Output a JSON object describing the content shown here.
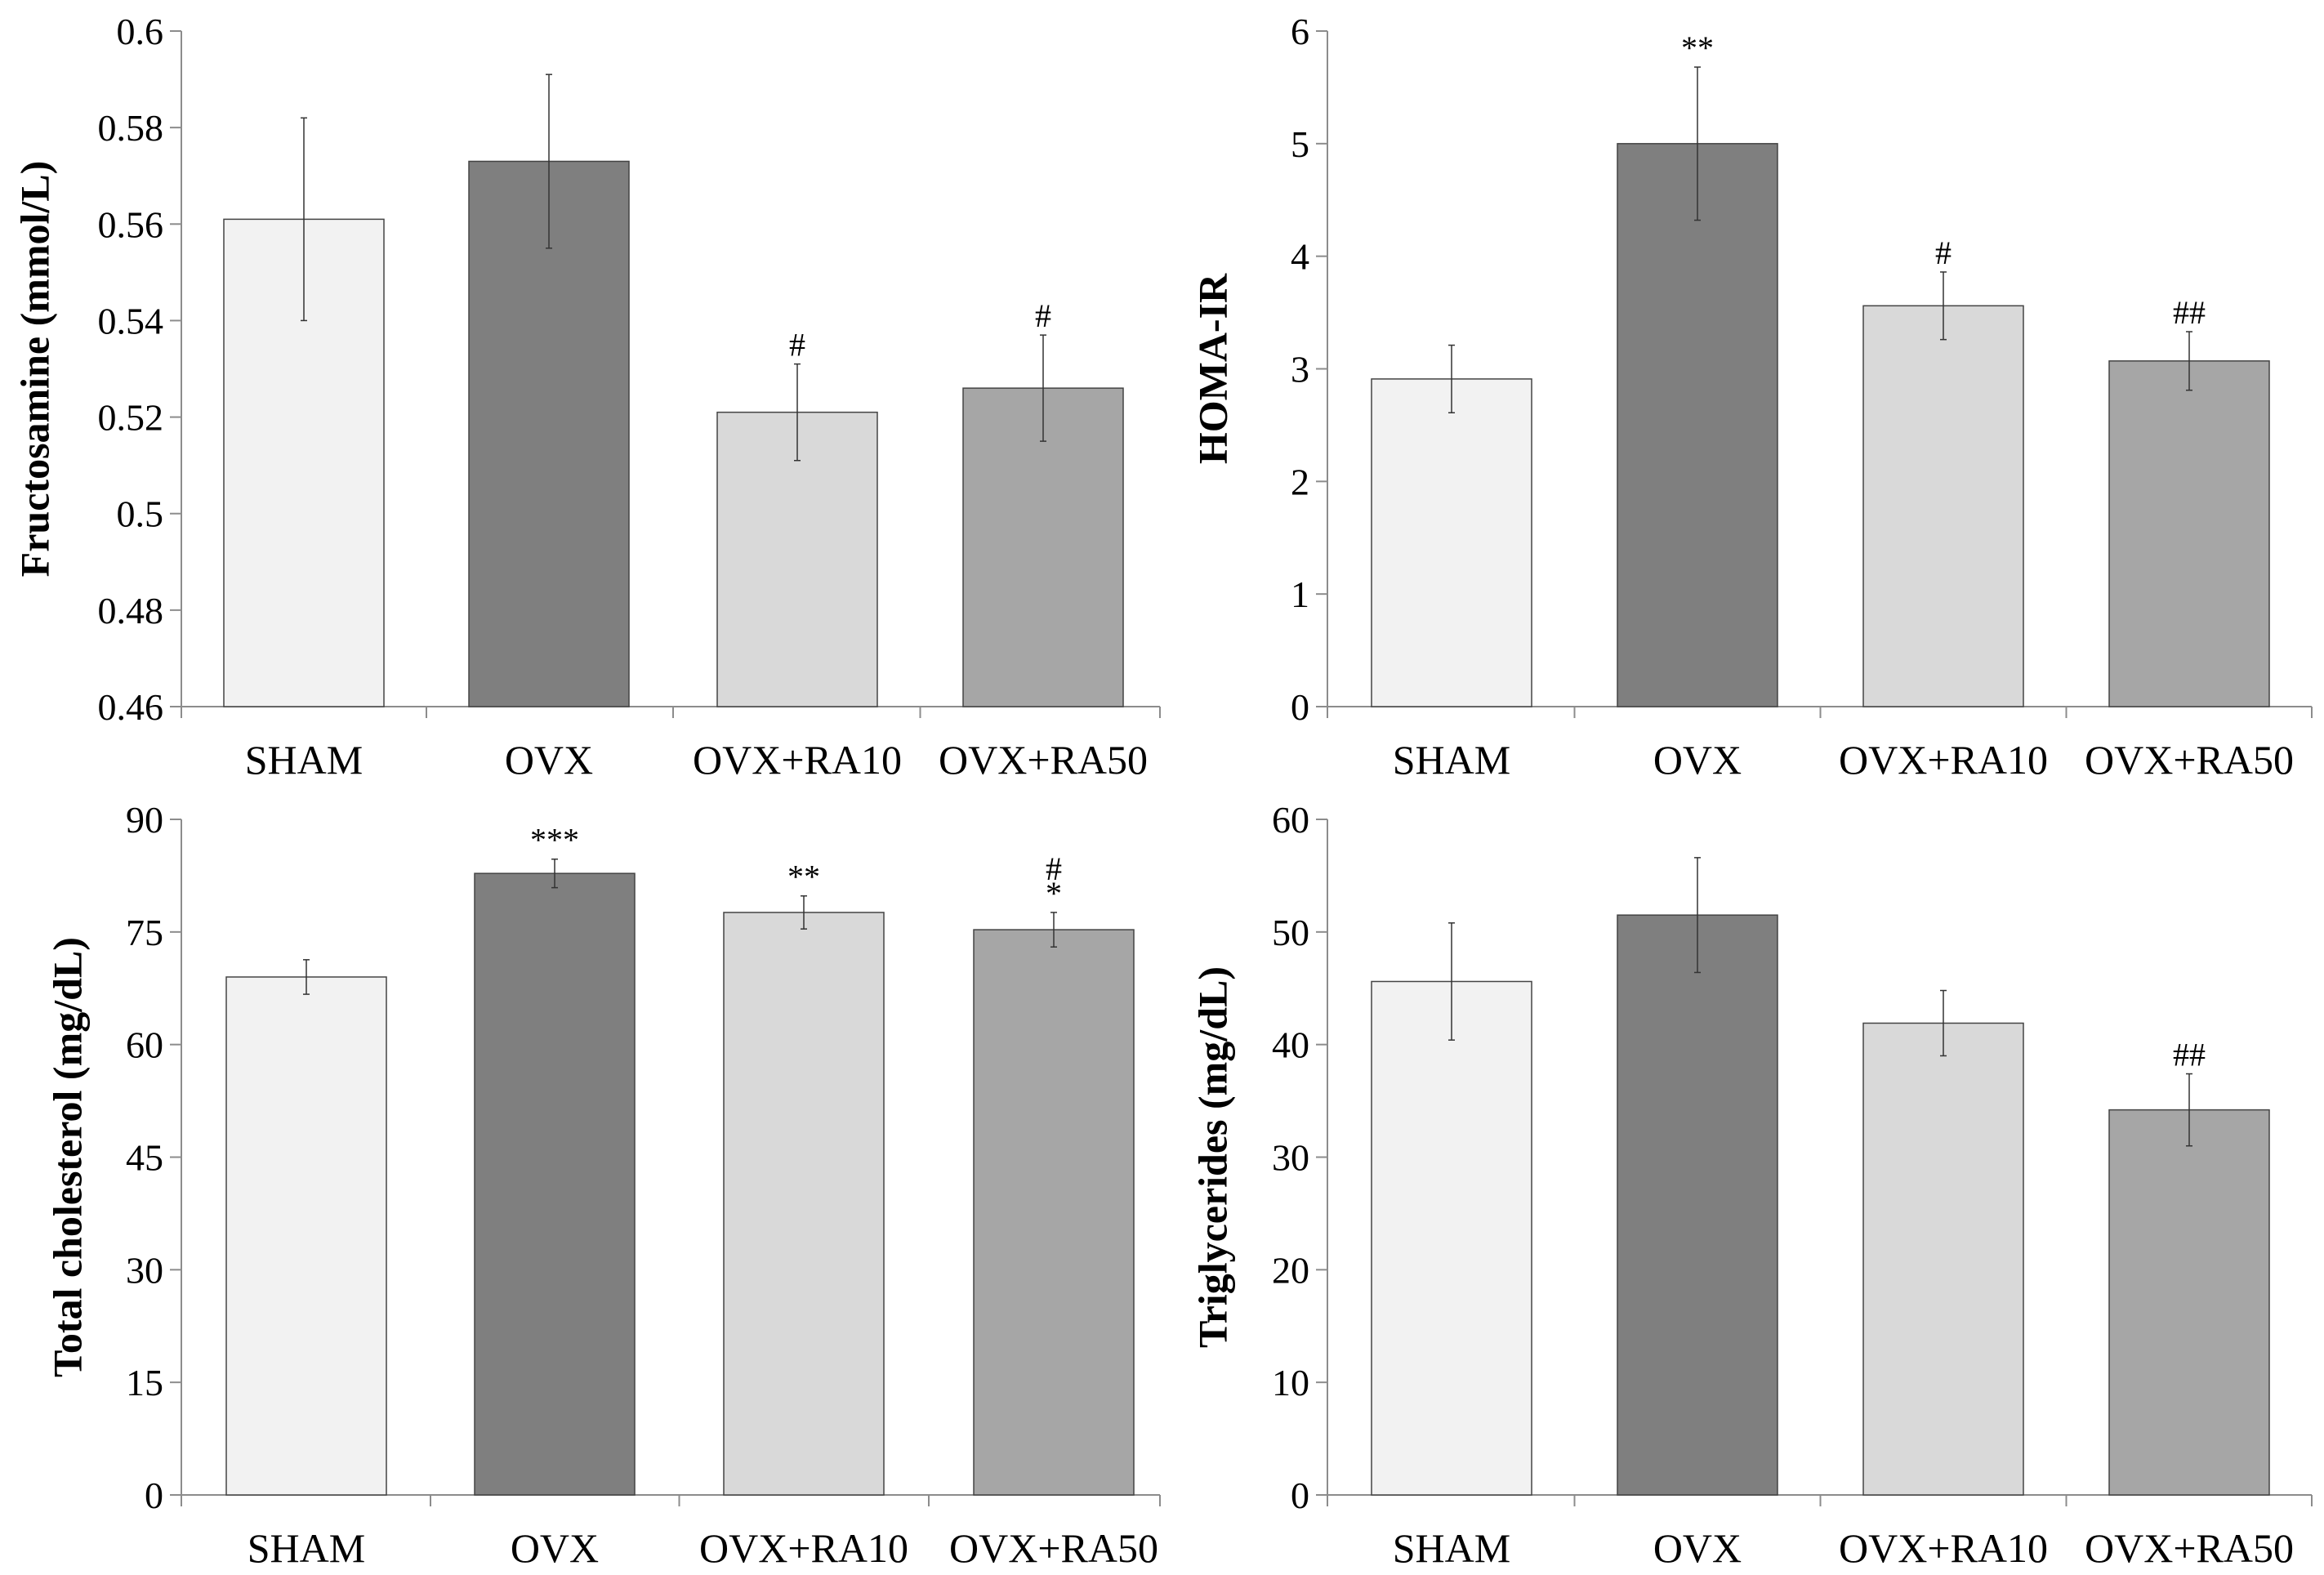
{
  "chart_data": [
    {
      "type": "bar",
      "ylabel": "Fructosamine (mmol/L)",
      "categories": [
        "SHAM",
        "OVX",
        "OVX+RA10",
        "OVX+RA50"
      ],
      "values": [
        0.561,
        0.573,
        0.521,
        0.526
      ],
      "errors": [
        0.021,
        0.018,
        0.01,
        0.011
      ],
      "annotations": [
        "",
        "",
        "#",
        "#"
      ],
      "ylim": [
        0.46,
        0.6
      ],
      "yticks": [
        "0.46",
        "0.48",
        "0.5",
        "0.52",
        "0.54",
        "0.56",
        "0.58",
        "0.6"
      ],
      "colors": [
        "#f2f2f2",
        "#7f7f7f",
        "#d9d9d9",
        "#a6a6a6"
      ],
      "grid": false
    },
    {
      "type": "bar",
      "ylabel": "HOMA-IR",
      "categories": [
        "SHAM",
        "OVX",
        "OVX+RA10",
        "OVX+RA50"
      ],
      "values": [
        2.91,
        5.0,
        3.56,
        3.07
      ],
      "errors": [
        0.3,
        0.68,
        0.3,
        0.26
      ],
      "annotations": [
        "",
        "**",
        "#",
        "##"
      ],
      "ylim": [
        0,
        6
      ],
      "yticks": [
        "0",
        "1",
        "2",
        "3",
        "4",
        "5",
        "6"
      ],
      "colors": [
        "#f2f2f2",
        "#7f7f7f",
        "#d9d9d9",
        "#a6a6a6"
      ],
      "grid": false
    },
    {
      "type": "bar",
      "ylabel": "Total cholesterol (mg/dL)",
      "categories": [
        "SHAM",
        "OVX",
        "OVX+RA10",
        "OVX+RA50"
      ],
      "values": [
        69.0,
        82.8,
        77.6,
        75.3
      ],
      "errors": [
        2.3,
        1.9,
        2.2,
        2.3
      ],
      "annotations": [
        "",
        "***",
        "**",
        "#\n*"
      ],
      "ylim": [
        0,
        90
      ],
      "yticks": [
        "0",
        "15",
        "30",
        "45",
        "60",
        "75",
        "90"
      ],
      "colors": [
        "#f2f2f2",
        "#7f7f7f",
        "#d9d9d9",
        "#a6a6a6"
      ],
      "grid": false
    },
    {
      "type": "bar",
      "ylabel": "Triglycerides (mg/dL)",
      "categories": [
        "SHAM",
        "OVX",
        "OVX+RA10",
        "OVX+RA50"
      ],
      "values": [
        45.6,
        51.5,
        41.9,
        34.2
      ],
      "errors": [
        5.2,
        5.1,
        2.9,
        3.2
      ],
      "annotations": [
        "",
        "",
        "",
        "##"
      ],
      "ylim": [
        0,
        60
      ],
      "yticks": [
        "0",
        "10",
        "20",
        "30",
        "40",
        "50",
        "60"
      ],
      "colors": [
        "#f2f2f2",
        "#7f7f7f",
        "#d9d9d9",
        "#a6a6a6"
      ],
      "grid": false
    }
  ]
}
